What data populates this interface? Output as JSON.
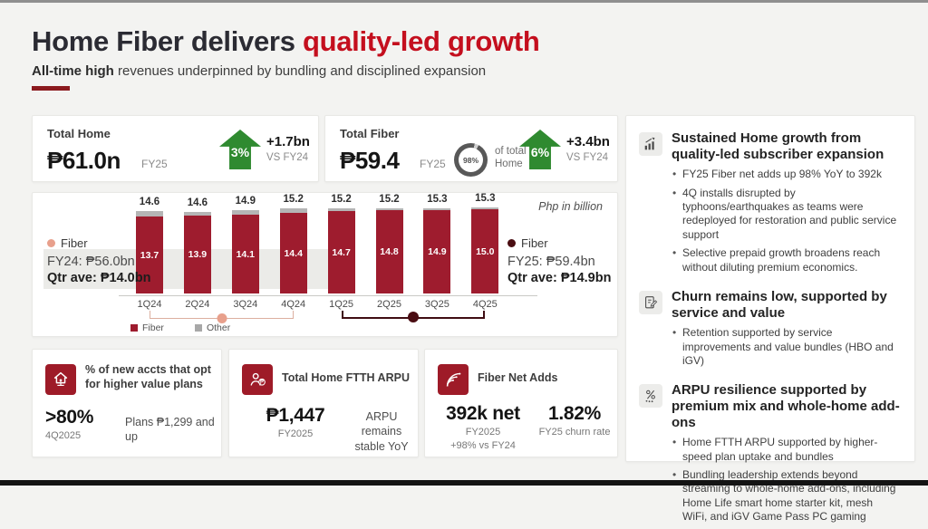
{
  "header": {
    "title_black": "Home Fiber delivers ",
    "title_red": "quality-led growth",
    "subtitle_bold": "All-time high",
    "subtitle_rest": " revenues underpinned by bundling and disciplined expansion"
  },
  "colors": {
    "title_red": "#c40f1e",
    "bar_fiber": "#9e1c2e",
    "bar_other": "#b5b5b5",
    "growth_green": "#2f8a30",
    "kpi_icon_red": "#9e1b28",
    "fy24_marker": "#e8a08c",
    "fy25_marker": "#4a0d12"
  },
  "kpi_top": [
    {
      "label": "Total Home",
      "value": "₱61.0n",
      "period": "FY25",
      "growth_pct": "3%",
      "delta": "+1.7bn",
      "delta_vs": "VS FY24"
    },
    {
      "label": "Total Fiber",
      "value": "₱59.4",
      "period": "FY25",
      "share_pct": "98%",
      "share_label": "of total Home",
      "growth_pct": "6%",
      "delta": "+3.4bn",
      "delta_vs": "VS FY24"
    }
  ],
  "chart_data": {
    "type": "bar",
    "stacked": true,
    "note": "Php in billion",
    "categories": [
      "1Q24",
      "2Q24",
      "3Q24",
      "4Q24",
      "1Q25",
      "2Q25",
      "3Q25",
      "4Q25"
    ],
    "series": [
      {
        "name": "Fiber",
        "color": "#9e1c2e",
        "values": [
          13.7,
          13.9,
          14.1,
          14.4,
          14.7,
          14.8,
          14.9,
          15.0
        ]
      },
      {
        "name": "Other",
        "color": "#b5b5b5",
        "values": [
          0.9,
          0.7,
          0.8,
          0.8,
          0.5,
          0.4,
          0.4,
          0.3
        ]
      }
    ],
    "totals": [
      14.6,
      14.6,
      14.9,
      15.2,
      15.2,
      15.2,
      15.3,
      15.3
    ],
    "ylim": [
      0,
      16
    ],
    "grid": false,
    "fy24": {
      "series": "Fiber",
      "total": "FY24: ₱56.0bn",
      "qtr_ave": "Qtr ave: ₱14.0bn"
    },
    "fy25": {
      "series": "Fiber",
      "total": "FY25: ₱59.4bn",
      "qtr_ave": "Qtr ave: ₱14.9bn"
    },
    "mini_legend": [
      {
        "label": "Fiber",
        "color": "#9e1c2e"
      },
      {
        "label": "Other",
        "color": "#a8a8a8"
      }
    ]
  },
  "kpi_bottom": [
    {
      "icon": "home-plan-icon",
      "title": "% of new accts that opt for higher value plans",
      "value": ">80%",
      "value_period": "4Q2025",
      "note": "Plans ₱1,299 and up"
    },
    {
      "icon": "arpu-person-icon",
      "title": "Total Home FTTH ARPU",
      "value": "₱1,447",
      "value_period": "FY2025",
      "note": "ARPU remains stable YoY"
    },
    {
      "icon": "fiber-net-adds-icon",
      "title": "Fiber Net Adds",
      "value": "392k net",
      "value_period": "FY2025",
      "value_delta": "+98% vs FY24",
      "secondary_value": "1.82%",
      "secondary_label": "FY25 churn rate"
    }
  ],
  "right_panel": {
    "sections": [
      {
        "icon": "growth-chart-icon",
        "heading": "Sustained Home growth from quality-led subscriber expansion",
        "bullets": [
          "FY25 Fiber net adds up 98% YoY to 392k",
          "4Q installs disrupted by typhoons/earthquakes as teams were redeployed for restoration and public service support",
          "Selective prepaid growth broadens reach without diluting premium economics."
        ]
      },
      {
        "icon": "document-pen-icon",
        "heading": "Churn remains low, supported by service and value",
        "bullets": [
          "Retention supported by service improvements and value bundles (HBO and iGV)"
        ]
      },
      {
        "icon": "premium-mix-icon",
        "heading": "ARPU resilience supported by premium mix and whole-home add-ons",
        "bullets": [
          "Home FTTH ARPU supported by higher-speed plan uptake and bundles",
          "Bundling leadership extends beyond streaming to whole-home add-ons, including Home Life smart home starter kit, mesh WiFi, and iGV Game Pass PC gaming"
        ]
      }
    ]
  }
}
